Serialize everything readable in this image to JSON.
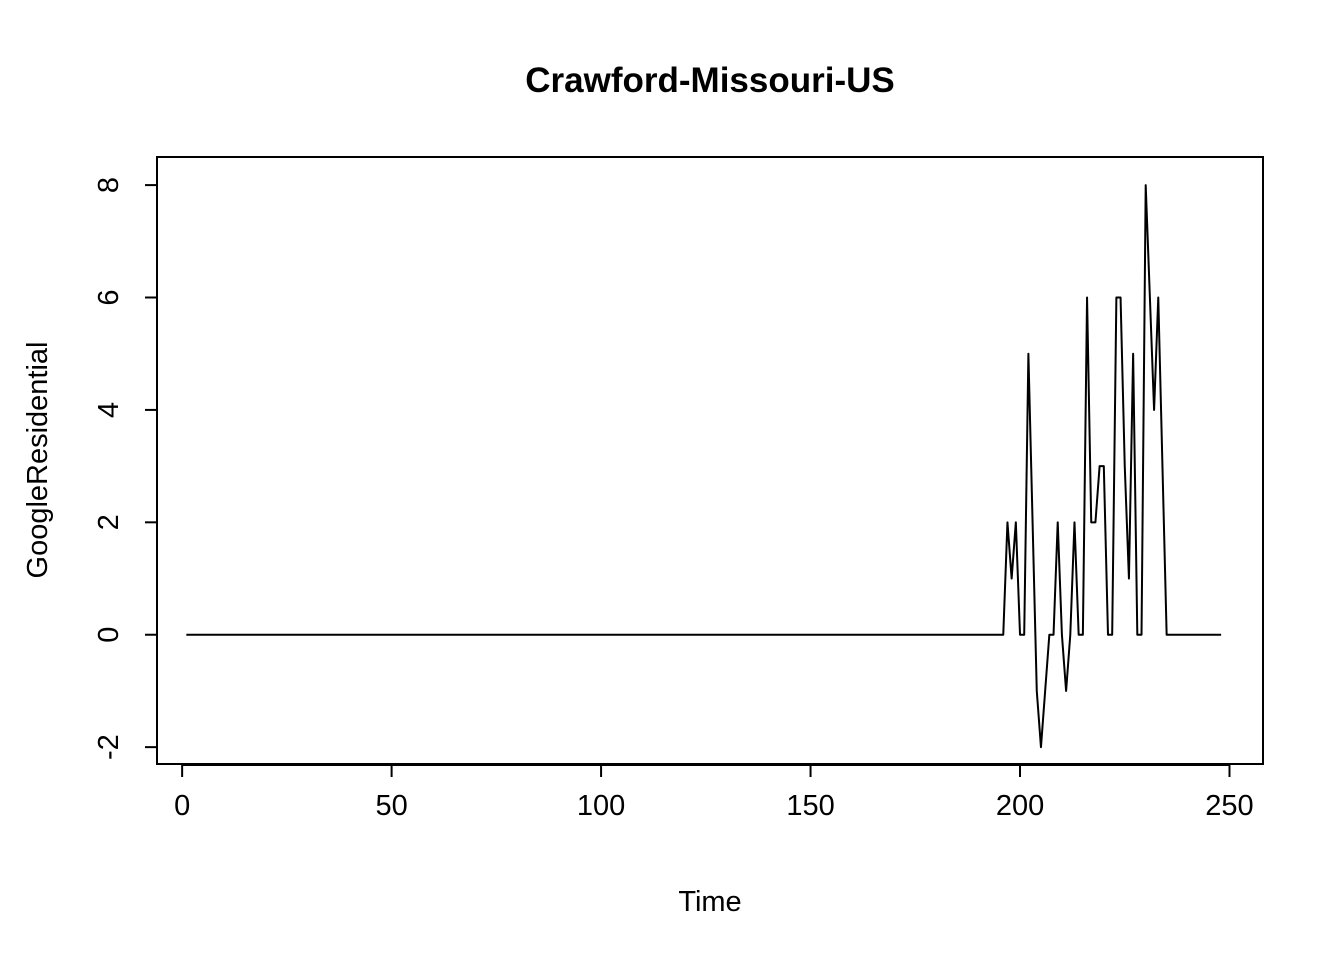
{
  "chart_data": {
    "type": "line",
    "title": "Crawford-Missouri-US",
    "xlabel": "Time",
    "ylabel": "GoogleResidential",
    "xlim": [
      -6,
      258
    ],
    "ylim": [
      -2.3,
      8.5
    ],
    "x_ticks": [
      0,
      50,
      100,
      150,
      200,
      250
    ],
    "y_ticks": [
      -2,
      0,
      2,
      4,
      6,
      8
    ],
    "x_tick_labels": [
      "0",
      "50",
      "100",
      "150",
      "200",
      "250"
    ],
    "y_tick_labels": [
      "-2",
      "0",
      "2",
      "4",
      "6",
      "8"
    ],
    "grid": false,
    "legend": "none",
    "line_color": "#000000",
    "series": [
      {
        "x": [
          1,
          196,
          197,
          198,
          199,
          200,
          201,
          202,
          203,
          204,
          205,
          206,
          207,
          208,
          209,
          210,
          211,
          212,
          213,
          214,
          215,
          216,
          217,
          218,
          219,
          220,
          221,
          222,
          223,
          224,
          225,
          226,
          227,
          228,
          229,
          230,
          231,
          232,
          233,
          234,
          235,
          248
        ],
        "values": [
          0,
          0,
          2,
          1,
          2,
          0,
          0,
          5,
          2,
          -1,
          -2,
          -1,
          0,
          0,
          2,
          0,
          -1,
          0,
          2,
          0,
          0,
          6,
          2,
          2,
          3,
          3,
          0,
          0,
          6,
          6,
          3,
          1,
          5,
          0,
          0,
          8,
          6,
          4,
          6,
          3,
          0,
          0
        ]
      }
    ]
  }
}
